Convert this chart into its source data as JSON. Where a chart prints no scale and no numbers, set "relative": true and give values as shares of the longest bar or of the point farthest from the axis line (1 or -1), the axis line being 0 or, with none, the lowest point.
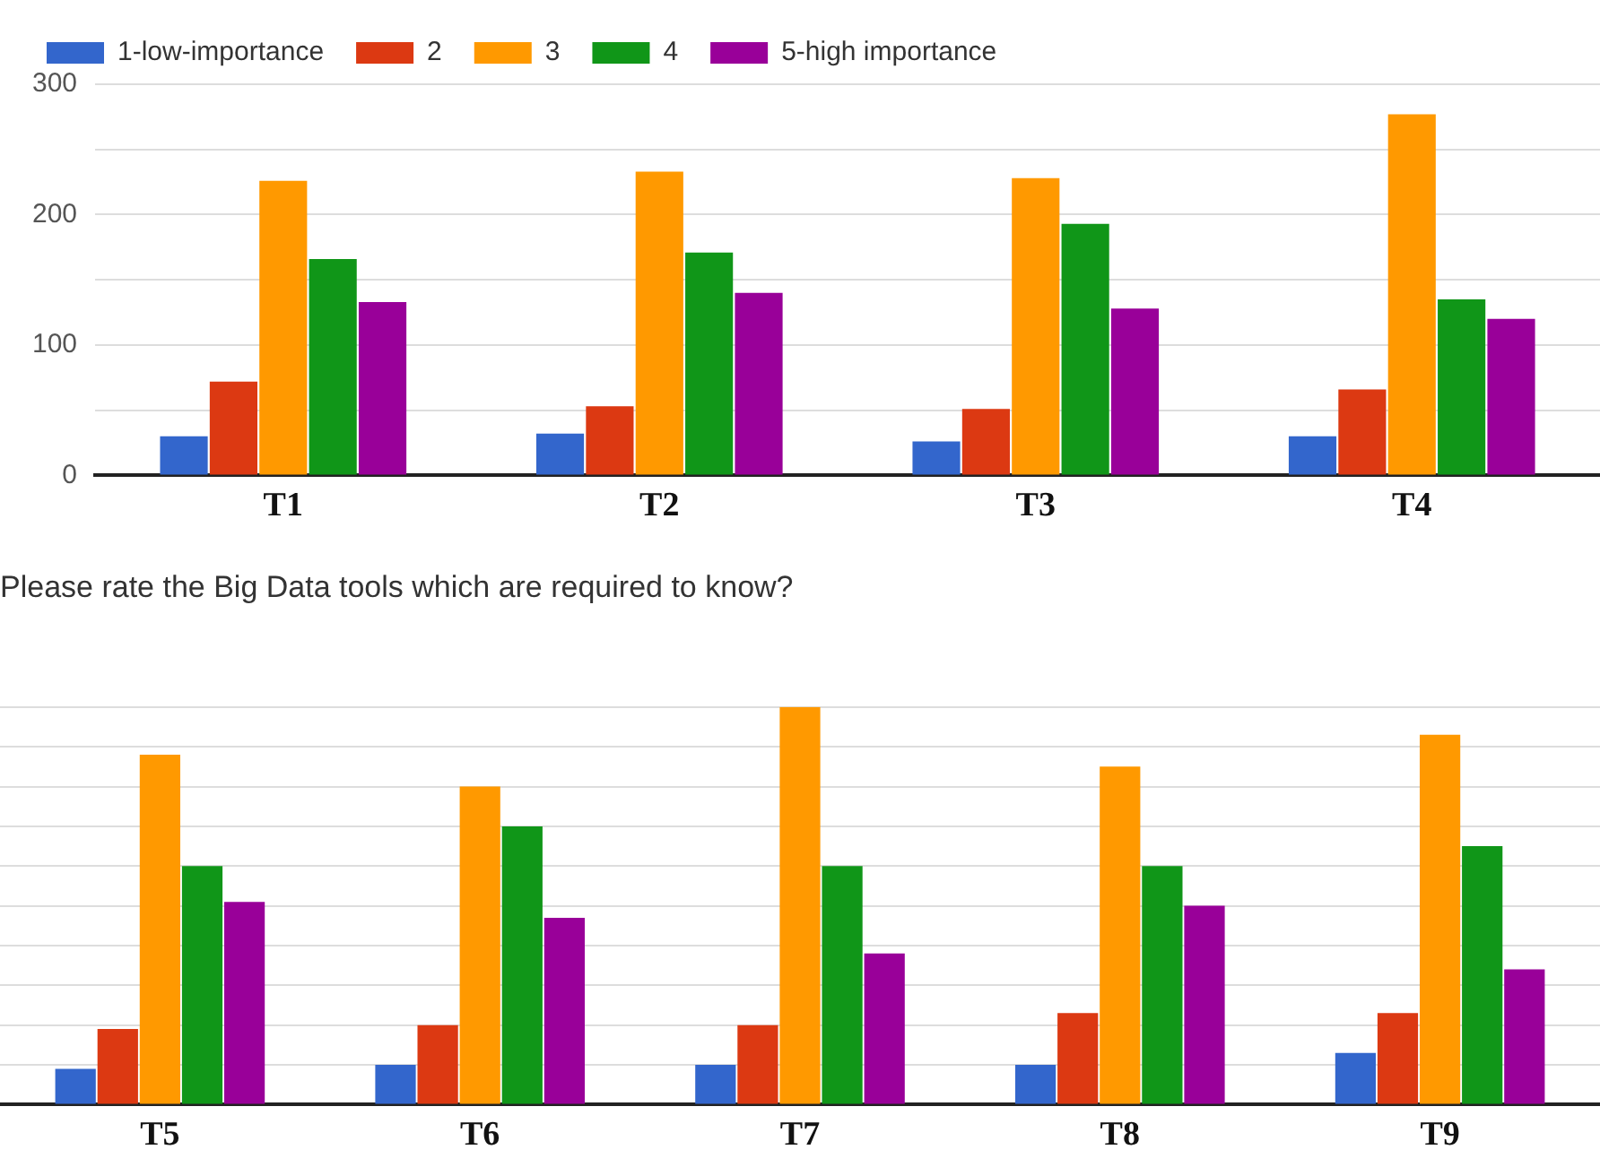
{
  "chart_data": [
    {
      "type": "bar",
      "categories": [
        "T1",
        "T2",
        "T3",
        "T4"
      ],
      "series": [
        {
          "name": "1-low-importance",
          "color": "#3366cc",
          "values": [
            30,
            32,
            26,
            30
          ]
        },
        {
          "name": "2",
          "color": "#dc3912",
          "values": [
            72,
            53,
            51,
            66
          ]
        },
        {
          "name": "3",
          "color": "#ff9900",
          "values": [
            226,
            233,
            228,
            277
          ]
        },
        {
          "name": "4",
          "color": "#109618",
          "values": [
            166,
            171,
            193,
            135
          ]
        },
        {
          "name": "5-high importance",
          "color": "#990099",
          "values": [
            133,
            140,
            128,
            120
          ]
        }
      ],
      "ylim": [
        0,
        300
      ],
      "yticks": [
        0,
        {
          "value": 50,
          "label": null
        },
        100,
        {
          "value": 150,
          "label": null
        },
        200,
        {
          "value": 250,
          "label": null
        },
        300
      ],
      "grid": "y",
      "legend": "top left"
    },
    {
      "type": "bar",
      "title": "Please rate the Big Data tools which are required to know?",
      "categories": [
        "T5",
        "T6",
        "T7",
        "T8",
        "T9"
      ],
      "series": [
        {
          "color": "#3366cc",
          "values": [
            0.09,
            0.1,
            0.1,
            0.1,
            0.13
          ]
        },
        {
          "color": "#dc3912",
          "values": [
            0.19,
            0.2,
            0.2,
            0.23,
            0.23
          ]
        },
        {
          "color": "#ff9900",
          "values": [
            0.88,
            0.8,
            1,
            0.85,
            0.93
          ]
        },
        {
          "color": "#109618",
          "values": [
            0.6,
            0.7,
            0.6,
            0.6,
            0.65
          ]
        },
        {
          "color": "#990099",
          "values": [
            0.51,
            0.47,
            0.38,
            0.5,
            0.34
          ]
        }
      ],
      "relative": true,
      "grid": "y"
    }
  ]
}
